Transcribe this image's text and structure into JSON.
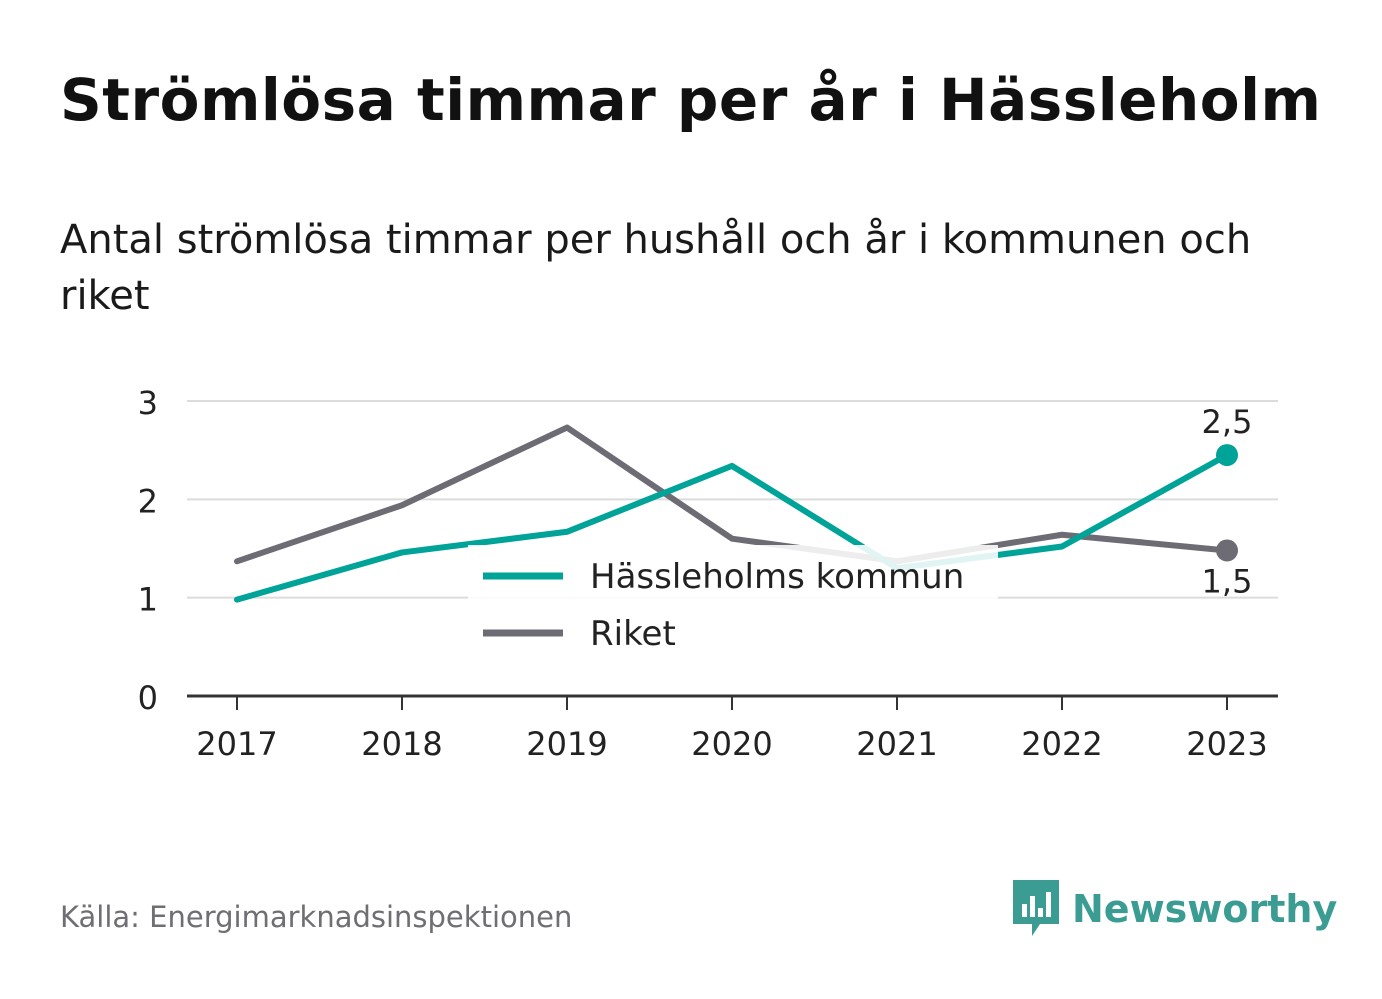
{
  "title": "Strömlösa timmar per år i Hässleholm",
  "subtitle": "Antal strömlösa timmar per hushåll och år i kommunen och riket",
  "source": "Källa: Energimarknadsinspektionen",
  "brand": {
    "name": "Newsworthy",
    "icon": "bar-chart-speech-bubble-icon",
    "color": "#3a9c92"
  },
  "chart_data": {
    "type": "line",
    "title": "",
    "xlabel": "",
    "ylabel": "",
    "x": [
      "2017",
      "2018",
      "2019",
      "2020",
      "2021",
      "2022",
      "2023"
    ],
    "ylim": [
      0,
      3
    ],
    "yticks": [
      "0",
      "1",
      "2",
      "3"
    ],
    "grid": true,
    "legend_position": "center",
    "series": [
      {
        "name": "Hässleholms kommun",
        "color": "#00a398",
        "values": [
          0.98,
          1.46,
          1.67,
          2.34,
          1.3,
          1.52,
          2.45
        ],
        "end_label": "2,5"
      },
      {
        "name": "Riket",
        "color": "#6d6c74",
        "values": [
          1.37,
          1.94,
          2.73,
          1.6,
          1.37,
          1.64,
          1.48
        ],
        "end_label": "1,5"
      }
    ]
  }
}
